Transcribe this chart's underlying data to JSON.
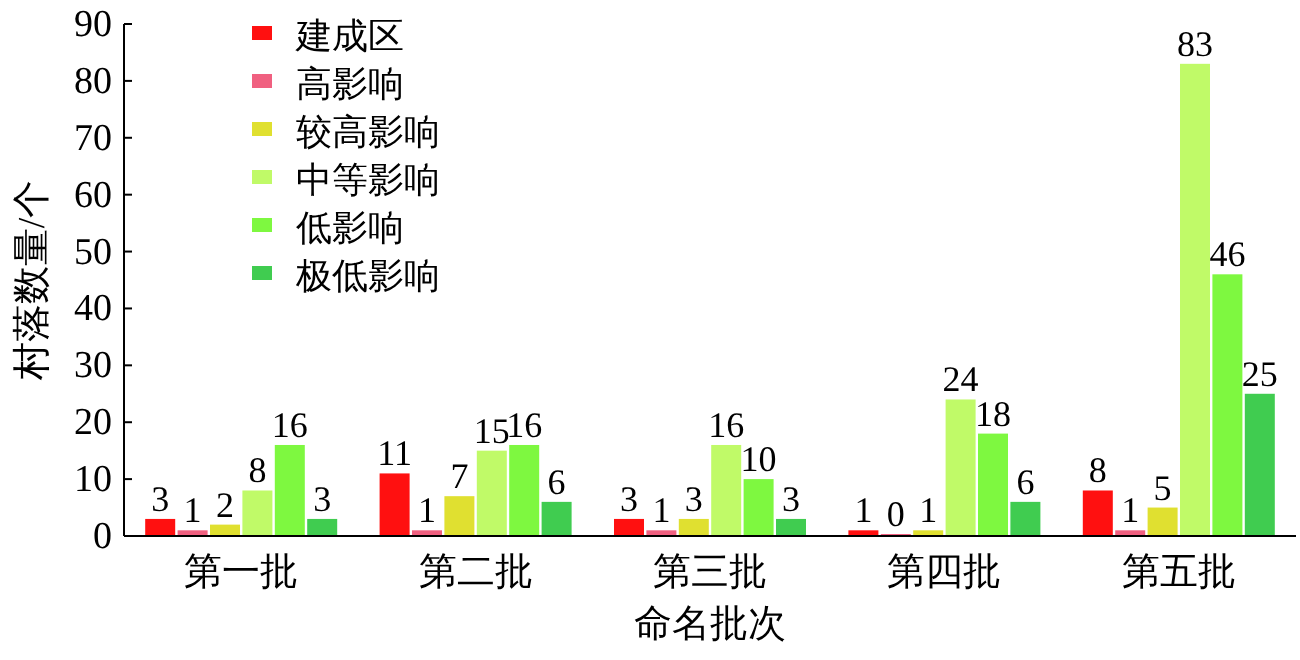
{
  "chart_data": {
    "type": "bar",
    "xlabel": "命名批次",
    "ylabel": "村落数量/个",
    "categories": [
      "第一批",
      "第二批",
      "第三批",
      "第四批",
      "第五批"
    ],
    "series": [
      {
        "name": "建成区",
        "color": "#ff1010",
        "values": [
          3,
          11,
          3,
          1,
          8
        ]
      },
      {
        "name": "高影响",
        "color": "#f06080",
        "values": [
          1,
          1,
          1,
          0,
          1
        ]
      },
      {
        "name": "较高影响",
        "color": "#e0e030",
        "values": [
          2,
          7,
          3,
          1,
          5
        ]
      },
      {
        "name": "中等影响",
        "color": "#c0fa68",
        "values": [
          8,
          15,
          16,
          24,
          83
        ]
      },
      {
        "name": "低影响",
        "color": "#7ef840",
        "values": [
          16,
          16,
          10,
          18,
          46
        ]
      },
      {
        "name": "极低影响",
        "color": "#40cc50",
        "values": [
          3,
          6,
          3,
          6,
          25
        ]
      }
    ],
    "ylim": [
      0,
      90
    ],
    "yticks": [
      0,
      10,
      20,
      30,
      40,
      50,
      60,
      70,
      80,
      90
    ],
    "data_labels": true,
    "legend": "top left",
    "grid": false
  }
}
